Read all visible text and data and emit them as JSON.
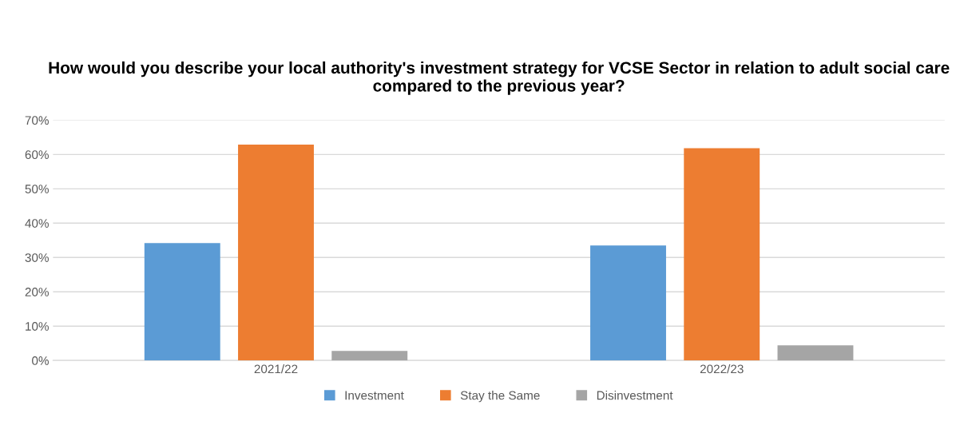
{
  "chart_data": {
    "type": "bar",
    "title": "How would you describe your local authority's investment strategy for VCSE Sector in relation to adult social care compared to the previous year?",
    "categories": [
      "2021/22",
      "2022/23"
    ],
    "series": [
      {
        "name": "Investment",
        "color": "#5b9bd5",
        "values": [
          34.2,
          33.5
        ]
      },
      {
        "name": "Stay the Same",
        "color": "#ed7d31",
        "values": [
          62.9,
          61.8
        ]
      },
      {
        "name": "Disinvestment",
        "color": "#a5a5a5",
        "values": [
          2.8,
          4.4
        ]
      }
    ],
    "ylim": [
      0,
      70
    ],
    "yticks": [
      {
        "value": 0,
        "label": "0%"
      },
      {
        "value": 10,
        "label": "10%"
      },
      {
        "value": 20,
        "label": "20%"
      },
      {
        "value": 30,
        "label": "30%"
      },
      {
        "value": 40,
        "label": "40%"
      },
      {
        "value": 50,
        "label": "50%"
      },
      {
        "value": 60,
        "label": "60%"
      },
      {
        "value": 70,
        "label": "70%"
      }
    ],
    "grid": "y",
    "legend": "bottom"
  }
}
